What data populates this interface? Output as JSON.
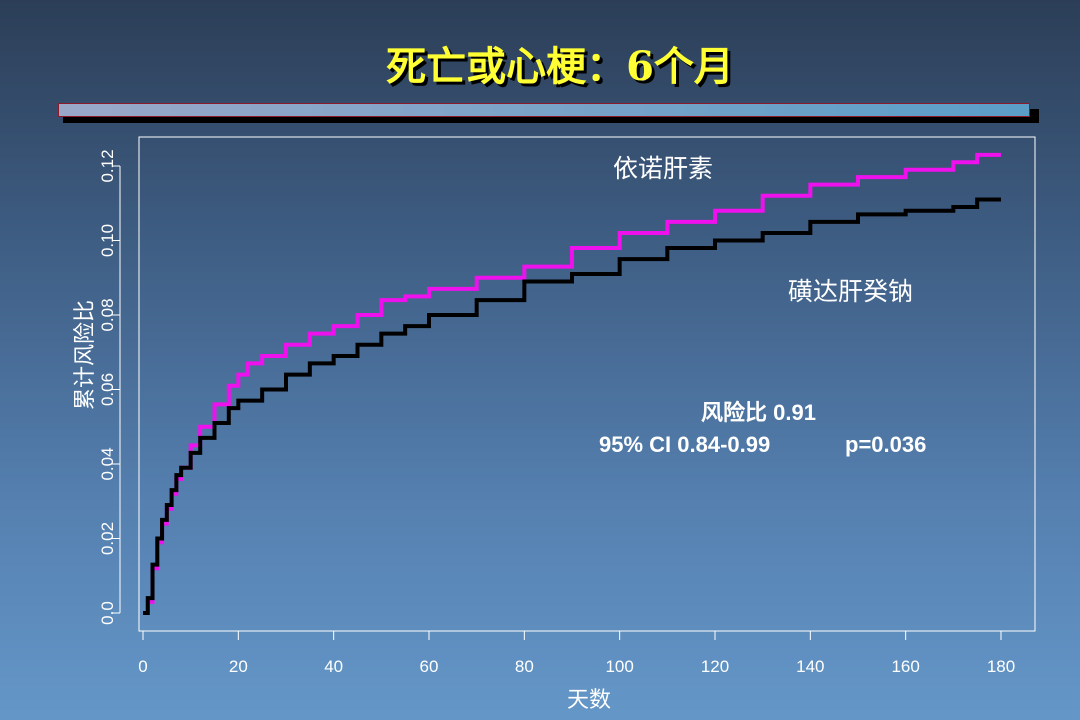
{
  "slide": {
    "title": "死亡或心梗：6个月"
  },
  "chart_data": {
    "type": "line",
    "step": true,
    "xlabel": "天数",
    "ylabel": "累计风险比",
    "xlim": [
      0,
      180
    ],
    "ylim": [
      0,
      0.12
    ],
    "x_ticks": [
      "0",
      "20",
      "40",
      "60",
      "80",
      "100",
      "120",
      "140",
      "160",
      "180"
    ],
    "y_ticks": [
      "0.0",
      "0.02",
      "0.04",
      "0.06",
      "0.08",
      "0.10",
      "0.12"
    ],
    "grid": false,
    "series": [
      {
        "name": "依诺肝素",
        "color": "#ee11ee",
        "points": [
          [
            0,
            0
          ],
          [
            1,
            0.003
          ],
          [
            2,
            0.012
          ],
          [
            3,
            0.019
          ],
          [
            4,
            0.024
          ],
          [
            5,
            0.028
          ],
          [
            6,
            0.032
          ],
          [
            7,
            0.036
          ],
          [
            8,
            0.039
          ],
          [
            10,
            0.045
          ],
          [
            12,
            0.05
          ],
          [
            15,
            0.056
          ],
          [
            18,
            0.061
          ],
          [
            20,
            0.064
          ],
          [
            22,
            0.067
          ],
          [
            25,
            0.069
          ],
          [
            30,
            0.072
          ],
          [
            35,
            0.075
          ],
          [
            40,
            0.077
          ],
          [
            45,
            0.08
          ],
          [
            50,
            0.084
          ],
          [
            55,
            0.085
          ],
          [
            60,
            0.087
          ],
          [
            70,
            0.09
          ],
          [
            80,
            0.093
          ],
          [
            90,
            0.098
          ],
          [
            100,
            0.102
          ],
          [
            110,
            0.105
          ],
          [
            120,
            0.108
          ],
          [
            130,
            0.112
          ],
          [
            140,
            0.115
          ],
          [
            150,
            0.117
          ],
          [
            160,
            0.119
          ],
          [
            170,
            0.121
          ],
          [
            175,
            0.123
          ],
          [
            180,
            0.123
          ]
        ]
      },
      {
        "name": "磺达肝癸钠",
        "color": "#000000",
        "points": [
          [
            0,
            0
          ],
          [
            1,
            0.004
          ],
          [
            2,
            0.013
          ],
          [
            3,
            0.02
          ],
          [
            4,
            0.025
          ],
          [
            5,
            0.029
          ],
          [
            6,
            0.033
          ],
          [
            7,
            0.037
          ],
          [
            8,
            0.039
          ],
          [
            10,
            0.043
          ],
          [
            12,
            0.047
          ],
          [
            15,
            0.051
          ],
          [
            18,
            0.055
          ],
          [
            20,
            0.057
          ],
          [
            25,
            0.06
          ],
          [
            30,
            0.064
          ],
          [
            35,
            0.067
          ],
          [
            40,
            0.069
          ],
          [
            45,
            0.072
          ],
          [
            50,
            0.075
          ],
          [
            55,
            0.077
          ],
          [
            60,
            0.08
          ],
          [
            70,
            0.084
          ],
          [
            80,
            0.089
          ],
          [
            90,
            0.091
          ],
          [
            100,
            0.095
          ],
          [
            110,
            0.098
          ],
          [
            120,
            0.1
          ],
          [
            130,
            0.102
          ],
          [
            140,
            0.105
          ],
          [
            150,
            0.107
          ],
          [
            160,
            0.108
          ],
          [
            170,
            0.109
          ],
          [
            175,
            0.111
          ],
          [
            180,
            0.111
          ]
        ]
      }
    ],
    "annotations": [
      "风险比 0.91",
      "95% CI 0.84-0.99",
      "p=0.036"
    ]
  }
}
